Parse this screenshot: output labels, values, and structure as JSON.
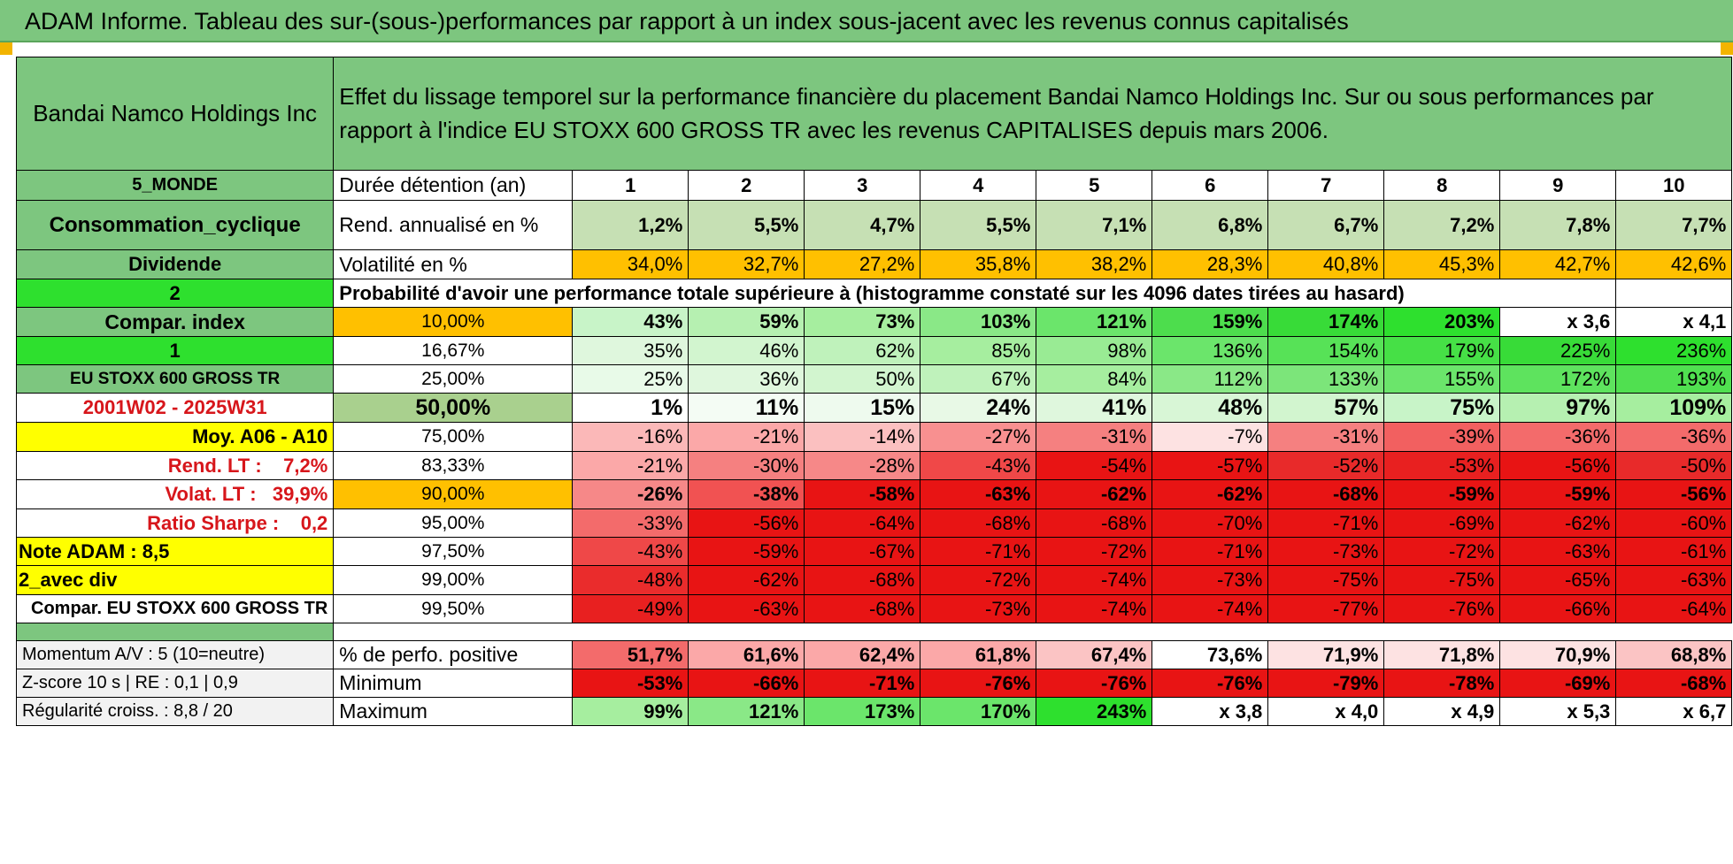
{
  "banner_title": "ADAM Informe. Tableau des sur-(sous-)performances par rapport à un index sous-jacent avec les revenus connus capitalisés",
  "header": {
    "company": "Bandai Namco Holdings Inc",
    "description": "Effet du lissage temporel sur la performance financière du placement Bandai Namco Holdings Inc. Sur ou sous performances par rapport à l'indice EU STOXX 600 GROSS TR avec les revenus CAPITALISES depuis mars 2006."
  },
  "side": {
    "zone": "5_MONDE",
    "sector": "Consommation_cyclique",
    "type": "Dividende",
    "num1": "2",
    "compar_label": "Compar. index",
    "num2": "1",
    "index_name": "EU STOXX 600 GROSS TR",
    "period": "2001W02 - 2025W31",
    "moy": "Moy. A06 - A10",
    "rend_lt": "Rend. LT :    7,2%",
    "volat_lt": "Volat. LT :   39,9%",
    "sharpe": "Ratio Sharpe :    0,2",
    "note": "Note ADAM : 8,5",
    "div": "2_avec div",
    "compar_full": "Compar. EU STOXX 600 GROSS TR"
  },
  "labels": {
    "duration": "Durée détention (an)",
    "rend": "Rend. annualisé en %",
    "vol": "Volatilité en %",
    "proba": "Probabilité d'avoir une performance totale supérieure à (histogramme constaté sur les 4096 dates tirées au hasard)"
  },
  "years": [
    "1",
    "2",
    "3",
    "4",
    "5",
    "6",
    "7",
    "8",
    "9",
    "10"
  ],
  "rend_values": [
    "1,2%",
    "5,5%",
    "4,7%",
    "5,5%",
    "7,1%",
    "6,8%",
    "6,7%",
    "7,2%",
    "7,8%",
    "7,7%"
  ],
  "vol_values": [
    "34,0%",
    "32,7%",
    "27,2%",
    "35,8%",
    "38,2%",
    "28,3%",
    "40,8%",
    "45,3%",
    "42,7%",
    "42,6%"
  ],
  "percentile_rows": [
    {
      "pct": "10,00%",
      "values": [
        "43%",
        "59%",
        "73%",
        "103%",
        "121%",
        "159%",
        "174%",
        "203%",
        "x 3,6",
        "x 4,1"
      ]
    },
    {
      "pct": "16,67%",
      "values": [
        "35%",
        "46%",
        "62%",
        "85%",
        "98%",
        "136%",
        "154%",
        "179%",
        "225%",
        "236%"
      ]
    },
    {
      "pct": "25,00%",
      "values": [
        "25%",
        "36%",
        "50%",
        "67%",
        "84%",
        "112%",
        "133%",
        "155%",
        "172%",
        "193%"
      ]
    },
    {
      "pct": "50,00%",
      "values": [
        "1%",
        "11%",
        "15%",
        "24%",
        "41%",
        "48%",
        "57%",
        "75%",
        "97%",
        "109%"
      ]
    },
    {
      "pct": "75,00%",
      "values": [
        "-16%",
        "-21%",
        "-14%",
        "-27%",
        "-31%",
        "-7%",
        "-31%",
        "-39%",
        "-36%",
        "-36%"
      ]
    },
    {
      "pct": "83,33%",
      "values": [
        "-21%",
        "-30%",
        "-28%",
        "-43%",
        "-54%",
        "-57%",
        "-52%",
        "-53%",
        "-56%",
        "-50%"
      ]
    },
    {
      "pct": "90,00%",
      "values": [
        "-26%",
        "-38%",
        "-58%",
        "-63%",
        "-62%",
        "-62%",
        "-68%",
        "-59%",
        "-59%",
        "-56%"
      ]
    },
    {
      "pct": "95,00%",
      "values": [
        "-33%",
        "-56%",
        "-64%",
        "-68%",
        "-68%",
        "-70%",
        "-71%",
        "-69%",
        "-62%",
        "-60%"
      ]
    },
    {
      "pct": "97,50%",
      "values": [
        "-43%",
        "-59%",
        "-67%",
        "-71%",
        "-72%",
        "-71%",
        "-73%",
        "-72%",
        "-63%",
        "-61%"
      ]
    },
    {
      "pct": "99,00%",
      "values": [
        "-48%",
        "-62%",
        "-68%",
        "-72%",
        "-74%",
        "-73%",
        "-75%",
        "-75%",
        "-65%",
        "-63%"
      ]
    },
    {
      "pct": "99,50%",
      "values": [
        "-49%",
        "-63%",
        "-68%",
        "-73%",
        "-74%",
        "-74%",
        "-77%",
        "-76%",
        "-66%",
        "-64%"
      ]
    }
  ],
  "stats": [
    {
      "side": "Momentum A/V : 5 (10=neutre)",
      "label": "% de perfo. positive",
      "values": [
        "51,7%",
        "61,6%",
        "62,4%",
        "61,8%",
        "67,4%",
        "73,6%",
        "71,9%",
        "71,8%",
        "70,9%",
        "68,8%"
      ]
    },
    {
      "side": "Z-score 10 s | RE : 0,1 | 0,9",
      "label": "Minimum",
      "values": [
        "-53%",
        "-66%",
        "-71%",
        "-76%",
        "-76%",
        "-76%",
        "-79%",
        "-78%",
        "-69%",
        "-68%"
      ]
    },
    {
      "side": "Régularité croiss. : 8,8 / 20",
      "label": "Maximum",
      "values": [
        "99%",
        "121%",
        "173%",
        "170%",
        "243%",
        "x 3,8",
        "x 4,0",
        "x 4,9",
        "x 5,3",
        "x 6,7"
      ]
    }
  ],
  "colors": {
    "header_green": "#7dc67f",
    "bright_green": "#2ee02e",
    "orange": "#ffc000",
    "yellow": "#ffff00",
    "red_text": "#d7161b",
    "cell_green_scale": [
      "#ffffff",
      "#e2f8e2",
      "#c8f4c8",
      "#a6ee9f",
      "#8ae887",
      "#6be56b",
      "#4ddd4d",
      "#2ee02e"
    ],
    "cell_red_scale": [
      "#ffffff",
      "#fde2e2",
      "#fbc4c4",
      "#f8a3a3",
      "#f47070",
      "#ee4040",
      "#e81414"
    ]
  },
  "percentile_cell_colors": [
    [
      "#c8f4c8",
      "#b6f0b1",
      "#a6ee9f",
      "#8ae887",
      "#6be56b",
      "#4ddd4d",
      "#38db38",
      "#2ee02e",
      "#ffffff",
      "#ffffff"
    ],
    [
      "#dff7dd",
      "#d2f5cf",
      "#bff2bb",
      "#a6ee9f",
      "#99eb94",
      "#6be56b",
      "#57e257",
      "#46e046",
      "#38db38",
      "#2ee02e"
    ],
    [
      "#e8faE8",
      "#dff7dd",
      "#d2f5cf",
      "#bff2bb",
      "#a6ee9f",
      "#8ae887",
      "#7ce57a",
      "#6be56b",
      "#5ee35e",
      "#50e050"
    ],
    [
      "#ffffff",
      "#f4fcf4",
      "#eefaee",
      "#e8f9e6",
      "#dff7dd",
      "#d8f6d6",
      "#d2f5cf",
      "#c8f4c8",
      "#b6f0b1",
      "#a6ee9f"
    ],
    [
      "#fbb8b8",
      "#fba8a8",
      "#fbc0c0",
      "#f89090",
      "#f58080",
      "#fde2e2",
      "#f58080",
      "#f26060",
      "#f36b6b",
      "#f36b6b"
    ],
    [
      "#fba8a8",
      "#f58080",
      "#f68888",
      "#f04848",
      "#e81414",
      "#e81414",
      "#e82a2a",
      "#e82020",
      "#e81414",
      "#e82a2a"
    ],
    [
      "#f68888",
      "#f15252",
      "#e81414",
      "#e81414",
      "#e81414",
      "#e81414",
      "#e81414",
      "#e81414",
      "#e81414",
      "#e81414"
    ],
    [
      "#f36b6b",
      "#e81414",
      "#e81414",
      "#e81414",
      "#e81414",
      "#e81414",
      "#e81414",
      "#e81414",
      "#e81414",
      "#e81414"
    ],
    [
      "#ef4848",
      "#e81414",
      "#e81414",
      "#e81414",
      "#e81414",
      "#e81414",
      "#e81414",
      "#e81414",
      "#e81414",
      "#e81414"
    ],
    [
      "#ea2c2c",
      "#e81414",
      "#e81414",
      "#e81414",
      "#e81414",
      "#e81414",
      "#e81414",
      "#e81414",
      "#e81414",
      "#e81414"
    ],
    [
      "#e82020",
      "#e81414",
      "#e81414",
      "#e81414",
      "#e81414",
      "#e81414",
      "#e81414",
      "#e81414",
      "#e81414",
      "#e81414"
    ]
  ],
  "stats_cell_colors": [
    [
      "#f36b6b",
      "#fba8a8",
      "#fba8a8",
      "#fba8a8",
      "#fbc4c4",
      "#ffffff",
      "#fde2e2",
      "#fde2e2",
      "#fde2e2",
      "#fbc4c4"
    ],
    [
      "#e81414",
      "#e81414",
      "#e81414",
      "#e81414",
      "#e81414",
      "#e81414",
      "#e81414",
      "#e81414",
      "#e81414",
      "#e81414"
    ],
    [
      "#a6ee9f",
      "#8ae887",
      "#6be56b",
      "#6be56b",
      "#2ee02e",
      "#ffffff",
      "#ffffff",
      "#ffffff",
      "#ffffff",
      "#ffffff"
    ]
  ]
}
